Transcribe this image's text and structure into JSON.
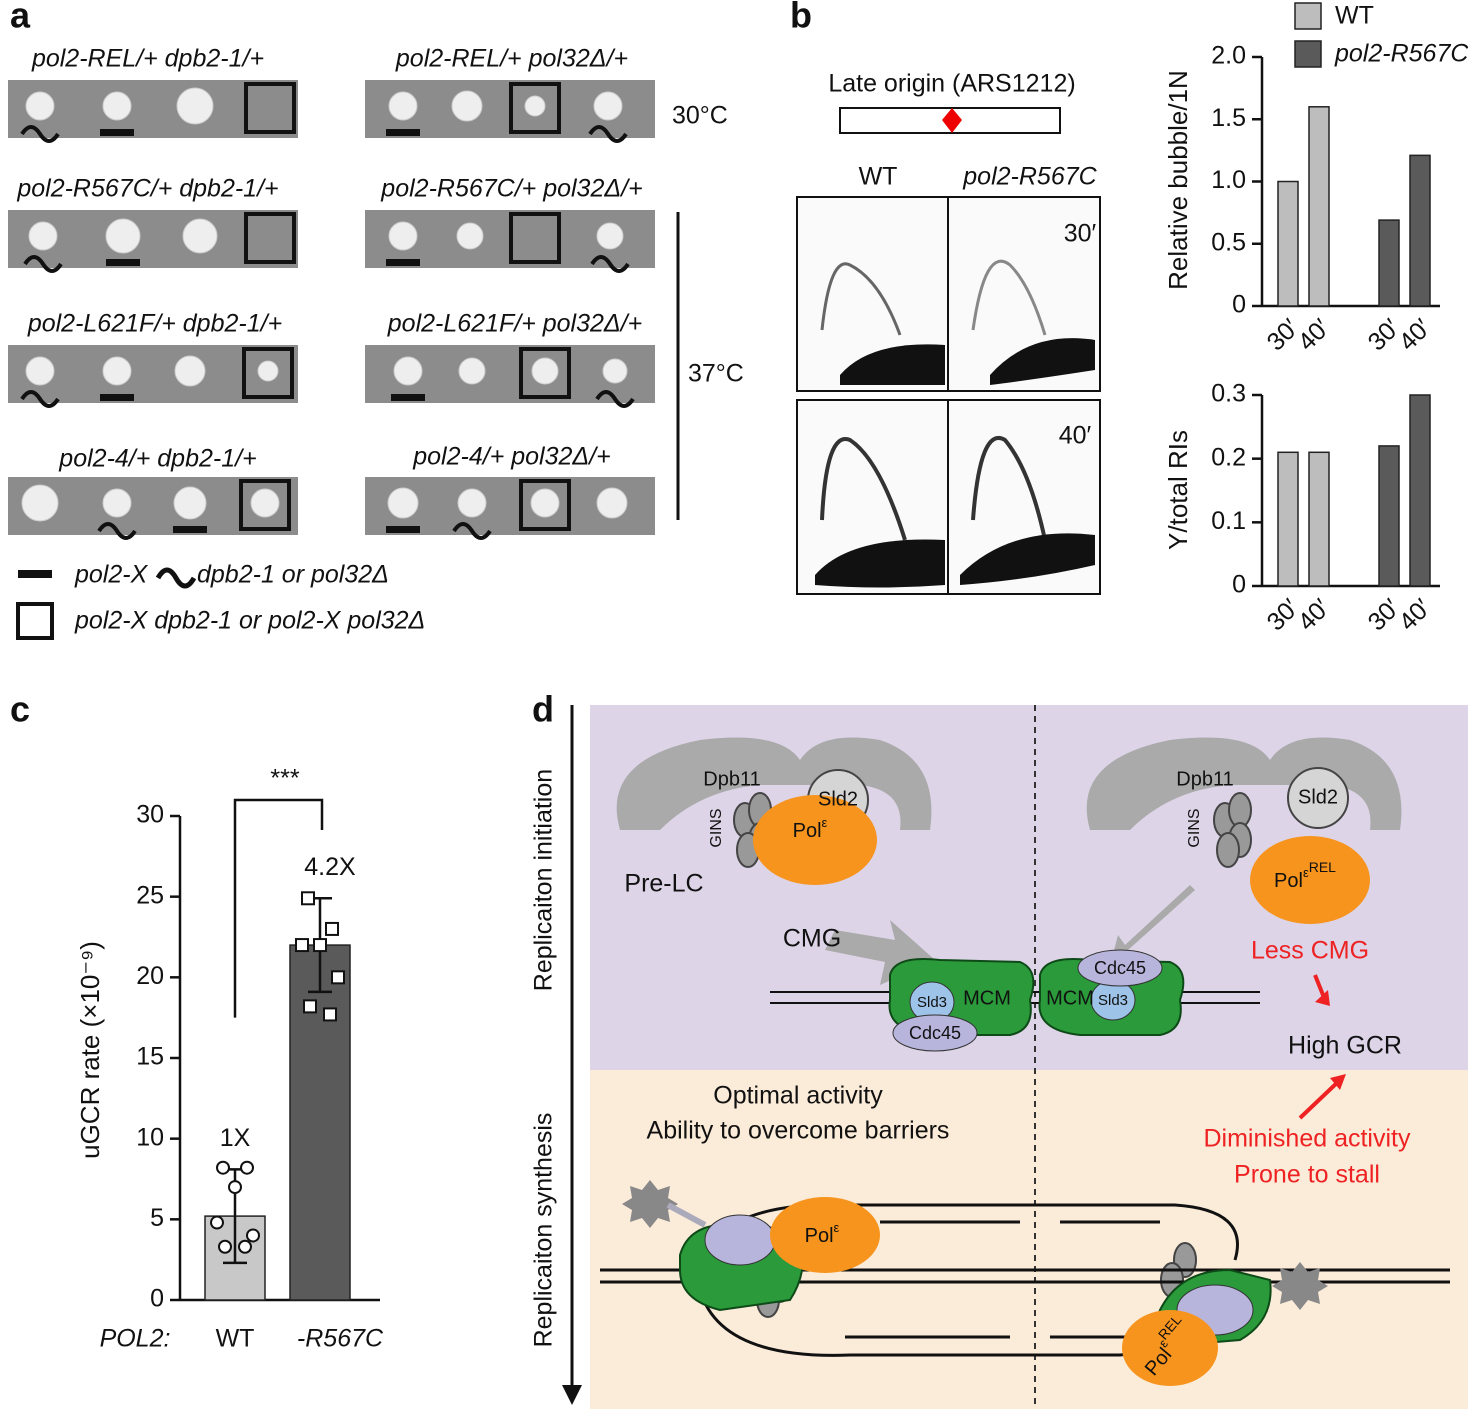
{
  "panel_labels": [
    "a",
    "b",
    "c",
    "d"
  ],
  "panel_a": {
    "rows": [
      {
        "left": "pol2-REL/+ dpb2-1/+",
        "right": "pol2-REL/+ pol32Δ/+"
      },
      {
        "left": "pol2-R567C/+ dpb2-1/+",
        "right": "pol2-R567C/+ pol32Δ/+"
      },
      {
        "left": "pol2-L621F/+ dpb2-1/+",
        "right": "pol2-L621F/+ pol32Δ/+"
      },
      {
        "left": "pol2-4/+ dpb2-1/+",
        "right": "pol2-4/+ pol32Δ/+"
      }
    ],
    "temperatures": [
      "30°C",
      "37°C"
    ],
    "legend": {
      "bar": "pol2-X",
      "tilde": "dpb2-1 or pol32Δ",
      "square": "pol2-X dpb2-1  or pol2-X pol32Δ"
    }
  },
  "panel_b": {
    "map_label": "Late origin (ARS1212)",
    "columns": [
      "WT",
      "pol2-R567C"
    ],
    "timepoints": [
      "30′",
      "40′"
    ]
  },
  "chart_data": [
    {
      "type": "bar",
      "ylabel": "Relative bubble/1N",
      "categories": [
        "30′",
        "40′"
      ],
      "series": [
        {
          "name": "WT",
          "color": "#bdbdbd",
          "values": [
            1.0,
            1.6
          ]
        },
        {
          "name": "pol2-R567C",
          "color": "#5a5a5a",
          "values": [
            0.69,
            1.21
          ]
        }
      ],
      "ylim": [
        0,
        2
      ],
      "yticks": [
        0,
        {
          "value": 0.5,
          "label": "0.5"
        },
        {
          "value": 1,
          "label": "1.0"
        },
        {
          "value": 1.5,
          "label": "1.5"
        },
        {
          "value": 2,
          "label": "2.0"
        }
      ],
      "legend": "top-left"
    },
    {
      "type": "bar",
      "ylabel": "Y/total RIs",
      "categories": [
        "30′",
        "40′"
      ],
      "series": [
        {
          "name": "WT",
          "color": "#bdbdbd",
          "values": [
            0.21,
            0.21
          ]
        },
        {
          "name": "pol2-R567C",
          "color": "#5a5a5a",
          "values": [
            0.22,
            0.3
          ]
        }
      ],
      "ylim": [
        0,
        0.3
      ],
      "yticks": [
        0,
        0.1,
        0.2,
        0.3
      ]
    },
    {
      "type": "bar",
      "ylabel": "uGCR rate (×10⁻⁹)",
      "xlabel": "POL2:",
      "categories": [
        "WT",
        "-R567C"
      ],
      "values": [
        5.2,
        22
      ],
      "errors": [
        2.9,
        2.9
      ],
      "colors": [
        "#c8c8c8",
        "#5a5a5a"
      ],
      "points": [
        [
          8.2,
          8.2,
          7.0,
          4.8,
          4.0,
          3.3,
          3.3
        ],
        [
          24.9,
          23.0,
          22.0,
          22.0,
          20.0,
          18.2,
          17.7
        ]
      ],
      "markers": [
        "circle",
        "square"
      ],
      "fold_labels": [
        "1X",
        "4.2X"
      ],
      "annotation": "***",
      "ylim": [
        0,
        30
      ],
      "yticks": [
        0,
        5,
        10,
        15,
        20,
        25,
        30
      ]
    }
  ],
  "panel_d": {
    "phases": [
      "Replicaiton initiation",
      "Replicaiton synthesis"
    ],
    "dpb11": "Dpb11",
    "sld2": "Sld2",
    "gins": "GINS",
    "pol": "Pol",
    "epsilon": "ε",
    "rel": "REL",
    "pre_lc": "Pre-LC",
    "cmg": "CMG",
    "sld3": "Sld3",
    "mcm": "MCM",
    "cdc45": "Cdc45",
    "less_cmg": "Less CMG",
    "high_gcr": "High GCR",
    "optimal": [
      "Optimal activity",
      "Ability to overcome barriers"
    ],
    "diminished": [
      "Diminished activity",
      "Prone to stall"
    ]
  }
}
